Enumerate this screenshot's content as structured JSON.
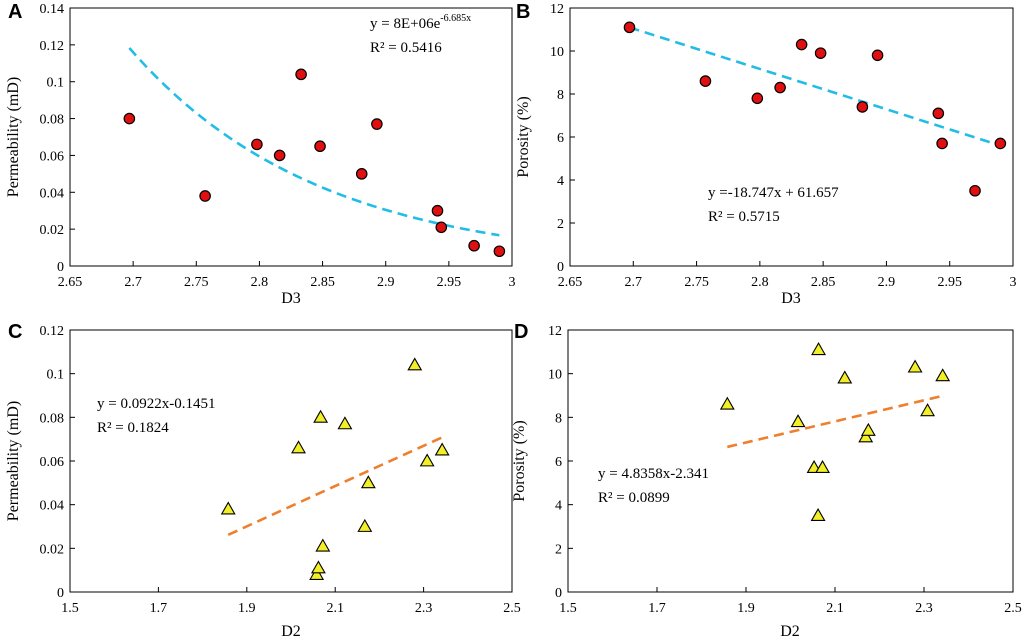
{
  "chart_data": [
    {
      "panel": "A",
      "type": "scatter",
      "title": "",
      "xlabel": "D3",
      "ylabel": "Permeability (mD)",
      "xlim": [
        2.65,
        3.0
      ],
      "ylim": [
        0,
        0.14
      ],
      "xticks": [
        2.65,
        2.7,
        2.75,
        2.8,
        2.85,
        2.9,
        2.95,
        3.0
      ],
      "yticks": [
        0,
        0.02,
        0.04,
        0.06,
        0.08,
        0.1,
        0.12,
        0.14
      ],
      "xtick_labels": [
        "2.65",
        "2.7",
        "2.75",
        "2.8",
        "2.85",
        "2.9",
        "2.95",
        "3"
      ],
      "ytick_labels": [
        "0",
        "0.02",
        "0.04",
        "0.06",
        "0.08",
        "0.1",
        "0.12",
        "0.14"
      ],
      "marker": "circle",
      "marker_color": "#e01010",
      "points": [
        {
          "x": 2.697,
          "y": 0.08
        },
        {
          "x": 2.757,
          "y": 0.038
        },
        {
          "x": 2.798,
          "y": 0.066
        },
        {
          "x": 2.816,
          "y": 0.06
        },
        {
          "x": 2.833,
          "y": 0.104
        },
        {
          "x": 2.848,
          "y": 0.065
        },
        {
          "x": 2.881,
          "y": 0.05
        },
        {
          "x": 2.893,
          "y": 0.077
        },
        {
          "x": 2.941,
          "y": 0.03
        },
        {
          "x": 2.944,
          "y": 0.021
        },
        {
          "x": 2.97,
          "y": 0.011
        },
        {
          "x": 2.99,
          "y": 0.008
        }
      ],
      "trendline": {
        "kind": "exponential",
        "a": 8000000,
        "b": -6.685,
        "x_range": [
          2.697,
          2.99
        ],
        "color": "#22bde6"
      },
      "equation": "y = 8E+06e",
      "equation_exp": "-6.685x",
      "r2": "R² = 0.5416"
    },
    {
      "panel": "B",
      "type": "scatter",
      "title": "",
      "xlabel": "D3",
      "ylabel": "Porosity (%)",
      "xlim": [
        2.65,
        3.0
      ],
      "ylim": [
        0,
        12
      ],
      "xticks": [
        2.65,
        2.7,
        2.75,
        2.8,
        2.85,
        2.9,
        2.95,
        3.0
      ],
      "yticks": [
        0,
        2,
        4,
        6,
        8,
        10,
        12
      ],
      "xtick_labels": [
        "2.65",
        "2.7",
        "2.75",
        "2.8",
        "2.85",
        "2.9",
        "2.95",
        "3"
      ],
      "ytick_labels": [
        "0",
        "2",
        "4",
        "6",
        "8",
        "10",
        "12"
      ],
      "marker": "circle",
      "marker_color": "#e01010",
      "points": [
        {
          "x": 2.697,
          "y": 11.1
        },
        {
          "x": 2.757,
          "y": 8.6
        },
        {
          "x": 2.798,
          "y": 7.8
        },
        {
          "x": 2.816,
          "y": 8.3
        },
        {
          "x": 2.833,
          "y": 10.3
        },
        {
          "x": 2.848,
          "y": 9.9
        },
        {
          "x": 2.881,
          "y": 7.4
        },
        {
          "x": 2.893,
          "y": 9.8
        },
        {
          "x": 2.941,
          "y": 7.1
        },
        {
          "x": 2.944,
          "y": 5.7
        },
        {
          "x": 2.97,
          "y": 3.5
        },
        {
          "x": 2.99,
          "y": 5.7
        }
      ],
      "trendline": {
        "kind": "linear",
        "slope": -18.747,
        "intercept": 61.657,
        "x_range": [
          2.697,
          2.99
        ],
        "color": "#22bde6"
      },
      "equation": "y =-18.747x + 61.657",
      "r2": "R² = 0.5715"
    },
    {
      "panel": "C",
      "type": "scatter",
      "title": "",
      "xlabel": "D2",
      "ylabel": "Permeability (mD)",
      "xlim": [
        1.5,
        2.5
      ],
      "ylim": [
        0,
        0.12
      ],
      "xticks": [
        1.5,
        1.7,
        1.9,
        2.1,
        2.3,
        2.5
      ],
      "yticks": [
        0,
        0.02,
        0.04,
        0.06,
        0.08,
        0.1,
        0.12
      ],
      "xtick_labels": [
        "1.5",
        "1.7",
        "1.9",
        "2.1",
        "2.3",
        "2.5"
      ],
      "ytick_labels": [
        "0",
        "0.02",
        "0.04",
        "0.06",
        "0.08",
        "0.1",
        "0.12"
      ],
      "marker": "triangle",
      "marker_color": "#f2ee28",
      "points": [
        {
          "x": 1.858,
          "y": 0.038
        },
        {
          "x": 2.017,
          "y": 0.066
        },
        {
          "x": 2.058,
          "y": 0.008
        },
        {
          "x": 2.062,
          "y": 0.011
        },
        {
          "x": 2.067,
          "y": 0.08
        },
        {
          "x": 2.072,
          "y": 0.021
        },
        {
          "x": 2.122,
          "y": 0.077
        },
        {
          "x": 2.167,
          "y": 0.03
        },
        {
          "x": 2.175,
          "y": 0.05
        },
        {
          "x": 2.28,
          "y": 0.104
        },
        {
          "x": 2.308,
          "y": 0.06
        },
        {
          "x": 2.342,
          "y": 0.065
        }
      ],
      "trendline": {
        "kind": "linear",
        "slope": 0.0922,
        "intercept": -0.1451,
        "x_range": [
          1.858,
          2.342
        ],
        "color": "#ee7f2d"
      },
      "equation": "y = 0.0922x-0.1451",
      "r2": "R² = 0.1824"
    },
    {
      "panel": "D",
      "type": "scatter",
      "title": "",
      "xlabel": "D2",
      "ylabel": "Porosity (%)",
      "xlim": [
        1.5,
        2.5
      ],
      "ylim": [
        0,
        12
      ],
      "xticks": [
        1.5,
        1.7,
        1.9,
        2.1,
        2.3,
        2.5
      ],
      "yticks": [
        0,
        2,
        4,
        6,
        8,
        10,
        12
      ],
      "xtick_labels": [
        "1.5",
        "1.7",
        "1.9",
        "2.1",
        "2.3",
        "2.5"
      ],
      "ytick_labels": [
        "0",
        "2",
        "4",
        "6",
        "8",
        "10",
        "12"
      ],
      "marker": "triangle",
      "marker_color": "#f2ee28",
      "points": [
        {
          "x": 1.858,
          "y": 8.6
        },
        {
          "x": 2.017,
          "y": 7.8
        },
        {
          "x": 2.053,
          "y": 5.7
        },
        {
          "x": 2.062,
          "y": 3.5
        },
        {
          "x": 2.063,
          "y": 11.1
        },
        {
          "x": 2.072,
          "y": 5.7
        },
        {
          "x": 2.122,
          "y": 9.8
        },
        {
          "x": 2.169,
          "y": 7.1
        },
        {
          "x": 2.175,
          "y": 7.4
        },
        {
          "x": 2.28,
          "y": 10.3
        },
        {
          "x": 2.308,
          "y": 8.3
        },
        {
          "x": 2.342,
          "y": 9.9
        }
      ],
      "trendline": {
        "kind": "linear",
        "slope": 4.8358,
        "intercept": -2.341,
        "x_range": [
          1.858,
          2.342
        ],
        "color": "#ee7f2d"
      },
      "equation": "y = 4.8358x-2.341",
      "r2": "R² = 0.0899"
    }
  ]
}
